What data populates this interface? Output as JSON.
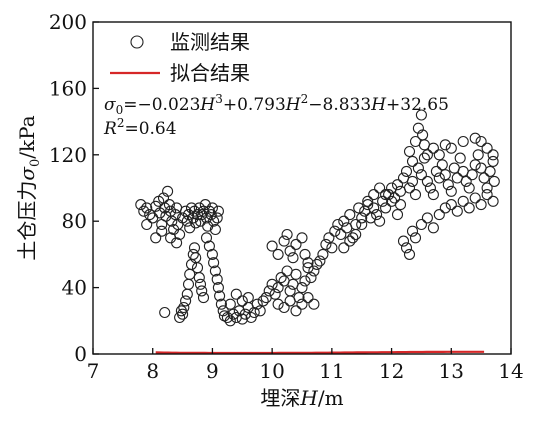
{
  "chart_data": {
    "type": "scatter",
    "xlabel_parts": [
      "埋深",
      "H",
      "/m"
    ],
    "ylabel_parts": [
      "土仓压力",
      "σ",
      "0",
      "/kPa"
    ],
    "xlim": [
      7,
      14
    ],
    "ylim": [
      0,
      200
    ],
    "xticks": [
      7,
      8,
      9,
      10,
      11,
      12,
      13,
      14
    ],
    "yticks": [
      0,
      40,
      80,
      120,
      160,
      200
    ],
    "legend": {
      "placement": "top-left",
      "entries": [
        {
          "label": "监测结果",
          "marker": "circle",
          "color": "#222222"
        },
        {
          "label": "拟合结果",
          "marker": "line",
          "color": "#d62728"
        }
      ]
    },
    "annotations": {
      "equation": "σ0=−0.023H3+0.793H2−8.833H+32.65",
      "r_squared": "R2=0.64"
    },
    "fit": {
      "name": "拟合结果",
      "color": "#d62728",
      "coefficients": {
        "a3": -0.023,
        "a2": 0.793,
        "a1": -8.833,
        "a0": 32.65
      },
      "x_range": [
        8.05,
        13.55
      ]
    },
    "series": [
      {
        "name": "监测结果",
        "marker": "circle",
        "points": [
          [
            7.8,
            90
          ],
          [
            7.85,
            86
          ],
          [
            7.9,
            88
          ],
          [
            7.95,
            84
          ],
          [
            8.0,
            82
          ],
          [
            8.05,
            89
          ],
          [
            8.1,
            92
          ],
          [
            8.12,
            85
          ],
          [
            8.15,
            78
          ],
          [
            8.18,
            94
          ],
          [
            8.2,
            88
          ],
          [
            8.22,
            83
          ],
          [
            8.25,
            98
          ],
          [
            8.28,
            90
          ],
          [
            8.3,
            86
          ],
          [
            8.32,
            80
          ],
          [
            8.35,
            75
          ],
          [
            8.38,
            84
          ],
          [
            8.4,
            88
          ],
          [
            8.42,
            78
          ],
          [
            8.45,
            72
          ],
          [
            8.5,
            82
          ],
          [
            8.55,
            86
          ],
          [
            8.58,
            80
          ],
          [
            8.6,
            84
          ],
          [
            8.62,
            76
          ],
          [
            8.65,
            88
          ],
          [
            8.68,
            82
          ],
          [
            8.7,
            86
          ],
          [
            8.72,
            79
          ],
          [
            8.75,
            84
          ],
          [
            8.78,
            88
          ],
          [
            8.8,
            80
          ],
          [
            8.82,
            84
          ],
          [
            8.85,
            86
          ],
          [
            8.88,
            90
          ],
          [
            8.9,
            82
          ],
          [
            8.92,
            77
          ],
          [
            8.95,
            86
          ],
          [
            8.98,
            84
          ],
          [
            9.0,
            88
          ],
          [
            9.02,
            80
          ],
          [
            9.05,
            75
          ],
          [
            9.08,
            82
          ],
          [
            9.1,
            86
          ],
          [
            7.9,
            78
          ],
          [
            8.05,
            70
          ],
          [
            8.15,
            74
          ],
          [
            8.3,
            70
          ],
          [
            8.4,
            67
          ],
          [
            8.5,
            24
          ],
          [
            8.52,
            28
          ],
          [
            8.55,
            32
          ],
          [
            8.58,
            36
          ],
          [
            8.6,
            42
          ],
          [
            8.62,
            48
          ],
          [
            8.65,
            54
          ],
          [
            8.68,
            60
          ],
          [
            8.7,
            64
          ],
          [
            8.72,
            58
          ],
          [
            8.75,
            52
          ],
          [
            8.78,
            46
          ],
          [
            8.8,
            42
          ],
          [
            8.82,
            38
          ],
          [
            8.85,
            34
          ],
          [
            8.45,
            22
          ],
          [
            8.48,
            26
          ],
          [
            8.2,
            25
          ],
          [
            8.9,
            70
          ],
          [
            8.95,
            65
          ],
          [
            9.0,
            60
          ],
          [
            9.02,
            55
          ],
          [
            9.05,
            50
          ],
          [
            9.08,
            45
          ],
          [
            9.1,
            40
          ],
          [
            9.12,
            35
          ],
          [
            9.15,
            30
          ],
          [
            9.18,
            26
          ],
          [
            9.2,
            23
          ],
          [
            9.25,
            22
          ],
          [
            9.3,
            20
          ],
          [
            9.35,
            24
          ],
          [
            9.4,
            22
          ],
          [
            9.45,
            26
          ],
          [
            9.5,
            21
          ],
          [
            9.55,
            24
          ],
          [
            9.6,
            28
          ],
          [
            9.65,
            22
          ],
          [
            9.7,
            25
          ],
          [
            9.75,
            30
          ],
          [
            9.8,
            26
          ],
          [
            9.85,
            32
          ],
          [
            9.3,
            30
          ],
          [
            9.4,
            36
          ],
          [
            9.5,
            32
          ],
          [
            9.6,
            34
          ],
          [
            9.9,
            34
          ],
          [
            9.95,
            38
          ],
          [
            10.0,
            42
          ],
          [
            10.05,
            36
          ],
          [
            10.1,
            40
          ],
          [
            10.15,
            46
          ],
          [
            10.2,
            44
          ],
          [
            10.25,
            50
          ],
          [
            10.3,
            38
          ],
          [
            10.35,
            42
          ],
          [
            10.4,
            48
          ],
          [
            10.45,
            34
          ],
          [
            10.5,
            40
          ],
          [
            10.55,
            44
          ],
          [
            10.6,
            52
          ],
          [
            10.65,
            46
          ],
          [
            10.7,
            50
          ],
          [
            10.75,
            54
          ],
          [
            10.0,
            65
          ],
          [
            10.1,
            60
          ],
          [
            10.2,
            68
          ],
          [
            10.25,
            72
          ],
          [
            10.3,
            62
          ],
          [
            10.35,
            58
          ],
          [
            10.4,
            66
          ],
          [
            10.5,
            70
          ],
          [
            10.55,
            60
          ],
          [
            10.6,
            55
          ],
          [
            10.1,
            30
          ],
          [
            10.2,
            28
          ],
          [
            10.3,
            32
          ],
          [
            10.4,
            26
          ],
          [
            10.5,
            30
          ],
          [
            10.6,
            34
          ],
          [
            10.7,
            30
          ],
          [
            10.8,
            56
          ],
          [
            10.85,
            60
          ],
          [
            10.9,
            66
          ],
          [
            10.95,
            70
          ],
          [
            11.0,
            64
          ],
          [
            11.05,
            74
          ],
          [
            11.1,
            78
          ],
          [
            11.15,
            72
          ],
          [
            11.2,
            80
          ],
          [
            11.25,
            76
          ],
          [
            11.3,
            84
          ],
          [
            11.35,
            70
          ],
          [
            11.4,
            78
          ],
          [
            11.45,
            88
          ],
          [
            11.5,
            82
          ],
          [
            11.55,
            86
          ],
          [
            11.6,
            90
          ],
          [
            11.65,
            82
          ],
          [
            11.7,
            88
          ],
          [
            11.75,
            84
          ],
          [
            11.8,
            80
          ],
          [
            11.85,
            92
          ],
          [
            11.9,
            88
          ],
          [
            11.95,
            96
          ],
          [
            12.0,
            100
          ],
          [
            12.05,
            94
          ],
          [
            12.1,
            102
          ],
          [
            12.15,
            98
          ],
          [
            12.2,
            106
          ],
          [
            12.25,
            110
          ],
          [
            12.3,
            100
          ],
          [
            12.35,
            104
          ],
          [
            12.4,
            96
          ],
          [
            12.45,
            112
          ],
          [
            12.5,
            108
          ],
          [
            12.55,
            118
          ],
          [
            12.6,
            104
          ],
          [
            12.65,
            100
          ],
          [
            12.7,
            96
          ],
          [
            12.75,
            110
          ],
          [
            12.8,
            106
          ],
          [
            12.85,
            114
          ],
          [
            12.9,
            108
          ],
          [
            12.95,
            102
          ],
          [
            13.0,
            98
          ],
          [
            13.05,
            112
          ],
          [
            13.1,
            106
          ],
          [
            13.15,
            118
          ],
          [
            13.2,
            110
          ],
          [
            13.25,
            104
          ],
          [
            13.3,
            100
          ],
          [
            13.35,
            108
          ],
          [
            13.4,
            114
          ],
          [
            13.45,
            120
          ],
          [
            13.5,
            112
          ],
          [
            13.55,
            106
          ],
          [
            13.6,
            100
          ],
          [
            13.65,
            110
          ],
          [
            13.7,
            116
          ],
          [
            13.72,
            104
          ],
          [
            12.4,
            128
          ],
          [
            12.45,
            136
          ],
          [
            12.5,
            144
          ],
          [
            12.52,
            132
          ],
          [
            12.55,
            126
          ],
          [
            12.6,
            120
          ],
          [
            12.3,
            122
          ],
          [
            12.35,
            116
          ],
          [
            12.7,
            124
          ],
          [
            12.8,
            120
          ],
          [
            12.9,
            126
          ],
          [
            13.0,
            124
          ],
          [
            13.2,
            128
          ],
          [
            13.4,
            130
          ],
          [
            13.5,
            128
          ],
          [
            13.6,
            124
          ],
          [
            13.7,
            120
          ],
          [
            12.2,
            68
          ],
          [
            12.25,
            64
          ],
          [
            12.3,
            60
          ],
          [
            12.35,
            74
          ],
          [
            12.4,
            70
          ],
          [
            12.5,
            78
          ],
          [
            12.6,
            82
          ],
          [
            12.7,
            76
          ],
          [
            12.8,
            84
          ],
          [
            12.9,
            88
          ],
          [
            13.0,
            90
          ],
          [
            13.1,
            86
          ],
          [
            13.2,
            92
          ],
          [
            13.3,
            88
          ],
          [
            13.4,
            94
          ],
          [
            13.5,
            90
          ],
          [
            13.6,
            96
          ],
          [
            13.7,
            92
          ],
          [
            12.1,
            84
          ],
          [
            12.15,
            90
          ],
          [
            11.9,
            96
          ],
          [
            12.0,
            92
          ],
          [
            11.8,
            100
          ],
          [
            11.7,
            96
          ],
          [
            11.6,
            92
          ],
          [
            11.5,
            78
          ],
          [
            11.4,
            72
          ],
          [
            11.3,
            68
          ],
          [
            11.2,
            64
          ]
        ]
      }
    ]
  }
}
